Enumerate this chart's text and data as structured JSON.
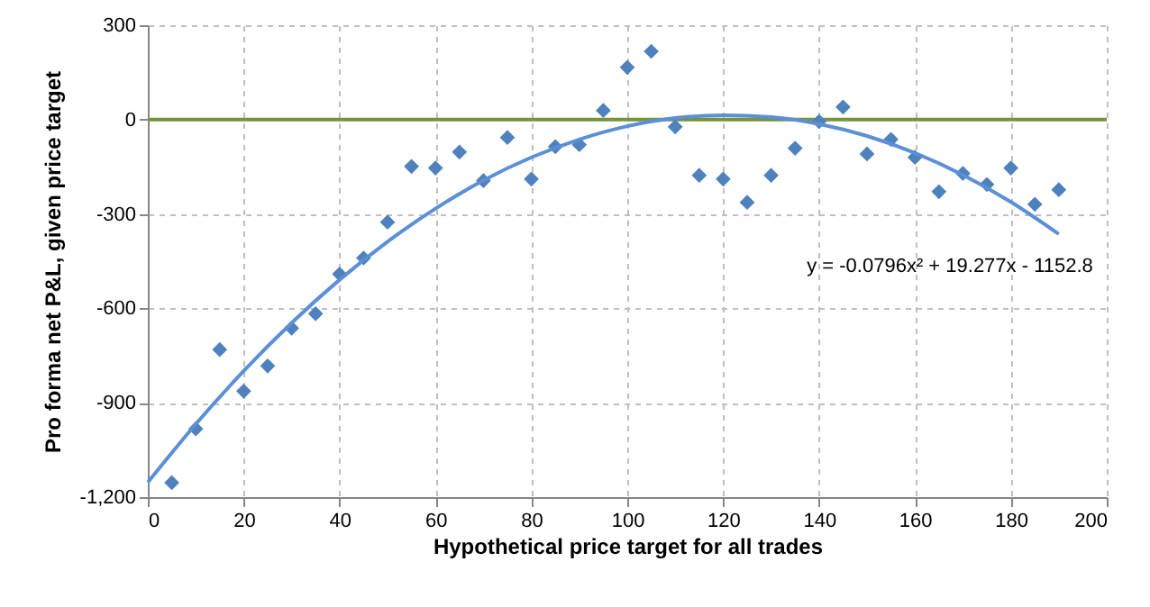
{
  "chart_data": {
    "type": "scatter",
    "xlabel": "Hypothetical price target for all trades",
    "ylabel": "Pro forma net P&L, given price target",
    "xlim": [
      0,
      200
    ],
    "xticks": [
      0,
      20,
      40,
      60,
      80,
      100,
      120,
      140,
      160,
      180,
      200
    ],
    "ylim": [
      -1200,
      300
    ],
    "yticks": [
      300,
      0,
      -300,
      -600,
      -900,
      {
        "value": -1200,
        "label": "-1,200"
      }
    ],
    "grid": true,
    "marker": "diamond",
    "series": [
      {
        "color": "#4f81bd",
        "x": [
          5,
          10,
          15,
          20,
          25,
          30,
          35,
          40,
          45,
          50,
          55,
          60,
          65,
          70,
          75,
          80,
          85,
          90,
          95,
          100,
          105,
          110,
          115,
          120,
          125,
          130,
          135,
          140,
          145,
          150,
          155,
          160,
          165,
          170,
          175,
          180,
          185,
          190
        ],
        "values": [
          -1154,
          -983,
          -731,
          -863,
          -783,
          -663,
          -617,
          -491,
          -440,
          -326,
          -149,
          -154,
          -103,
          -194,
          -57,
          -189,
          -86,
          -80,
          29,
          166,
          217,
          -23,
          -177,
          -189,
          -263,
          -177,
          -91,
          -6,
          40,
          -109,
          -63,
          -120,
          -229,
          -171,
          -206,
          -154,
          -269,
          -223
        ]
      },
      {
        "type": "line",
        "color": "#5b8fd6",
        "marker": "none",
        "x": [
          0,
          10,
          20,
          30,
          40,
          50,
          60,
          70,
          80,
          90,
          100,
          110,
          120,
          130,
          140,
          150,
          160,
          170,
          180,
          190
        ],
        "values": [
          -1153,
          -968,
          -799,
          -646,
          -509,
          -388,
          -283,
          -193,
          -120,
          -63,
          -21,
          5,
          14,
          8,
          -14,
          -52,
          -106,
          -176,
          -262,
          -364
        ]
      }
    ],
    "ref_lines": [
      {
        "axis": "y",
        "value": 0,
        "color": "#77933c"
      }
    ],
    "annotations": [
      "y = -0.0796x² + 19.277x - 1152.8"
    ]
  }
}
